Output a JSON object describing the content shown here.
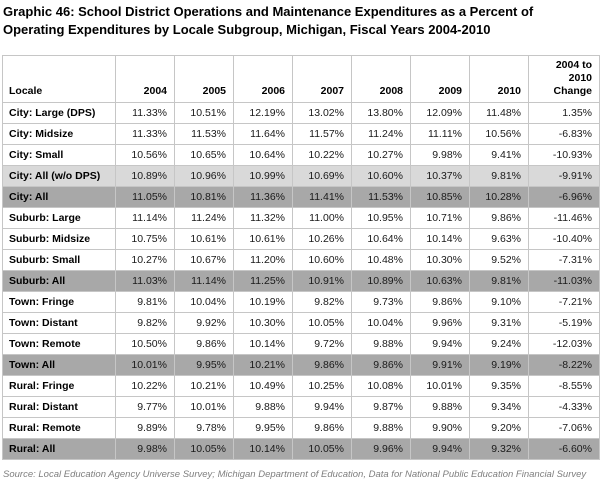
{
  "title": "Graphic 46: School District Operations and Maintenance Expenditures as a Percent of Operating Expenditures by Locale Subgroup, Michigan, Fiscal Years 2004-2010",
  "source_note": "Source: Local Education Agency Universe Survey; Michigan Department of Education, Data for National Public Education Financial Survey",
  "colors": {
    "row_highlight_light": "#d9d9d9",
    "row_highlight_dark": "#a8a8a8",
    "table_border": "#c6c6c6",
    "title_text": "#000000",
    "source_text": "#7f7f7f"
  },
  "chart_data": {
    "type": "table",
    "title": "Graphic 46: School District Operations and Maintenance Expenditures as a Percent of Operating Expenditures by Locale Subgroup, Michigan, Fiscal Years 2004-2010",
    "columns": [
      "Locale",
      "2004",
      "2005",
      "2006",
      "2007",
      "2008",
      "2009",
      "2010",
      "2004 to 2010 Change"
    ],
    "rows": [
      {
        "locale": "City: Large (DPS)",
        "values": [
          "11.33%",
          "10.51%",
          "12.19%",
          "13.02%",
          "13.80%",
          "12.09%",
          "11.48%",
          "1.35%"
        ],
        "emphasis": "none"
      },
      {
        "locale": "City: Midsize",
        "values": [
          "11.33%",
          "11.53%",
          "11.64%",
          "11.57%",
          "11.24%",
          "11.11%",
          "10.56%",
          "-6.83%"
        ],
        "emphasis": "none"
      },
      {
        "locale": "City: Small",
        "values": [
          "10.56%",
          "10.65%",
          "10.64%",
          "10.22%",
          "10.27%",
          "9.98%",
          "9.41%",
          "-10.93%"
        ],
        "emphasis": "none"
      },
      {
        "locale": "City: All (w/o DPS)",
        "values": [
          "10.89%",
          "10.96%",
          "10.99%",
          "10.69%",
          "10.60%",
          "10.37%",
          "9.81%",
          "-9.91%"
        ],
        "emphasis": "light"
      },
      {
        "locale": "City: All",
        "values": [
          "11.05%",
          "10.81%",
          "11.36%",
          "11.41%",
          "11.53%",
          "10.85%",
          "10.28%",
          "-6.96%"
        ],
        "emphasis": "dark"
      },
      {
        "locale": "Suburb: Large",
        "values": [
          "11.14%",
          "11.24%",
          "11.32%",
          "11.00%",
          "10.95%",
          "10.71%",
          "9.86%",
          "-11.46%"
        ],
        "emphasis": "none"
      },
      {
        "locale": "Suburb: Midsize",
        "values": [
          "10.75%",
          "10.61%",
          "10.61%",
          "10.26%",
          "10.64%",
          "10.14%",
          "9.63%",
          "-10.40%"
        ],
        "emphasis": "none"
      },
      {
        "locale": "Suburb: Small",
        "values": [
          "10.27%",
          "10.67%",
          "11.20%",
          "10.60%",
          "10.48%",
          "10.30%",
          "9.52%",
          "-7.31%"
        ],
        "emphasis": "none"
      },
      {
        "locale": "Suburb: All",
        "values": [
          "11.03%",
          "11.14%",
          "11.25%",
          "10.91%",
          "10.89%",
          "10.63%",
          "9.81%",
          "-11.03%"
        ],
        "emphasis": "dark"
      },
      {
        "locale": "Town: Fringe",
        "values": [
          "9.81%",
          "10.04%",
          "10.19%",
          "9.82%",
          "9.73%",
          "9.86%",
          "9.10%",
          "-7.21%"
        ],
        "emphasis": "none"
      },
      {
        "locale": "Town: Distant",
        "values": [
          "9.82%",
          "9.92%",
          "10.30%",
          "10.05%",
          "10.04%",
          "9.96%",
          "9.31%",
          "-5.19%"
        ],
        "emphasis": "none"
      },
      {
        "locale": "Town: Remote",
        "values": [
          "10.50%",
          "9.86%",
          "10.14%",
          "9.72%",
          "9.88%",
          "9.94%",
          "9.24%",
          "-12.03%"
        ],
        "emphasis": "none"
      },
      {
        "locale": "Town: All",
        "values": [
          "10.01%",
          "9.95%",
          "10.21%",
          "9.86%",
          "9.86%",
          "9.91%",
          "9.19%",
          "-8.22%"
        ],
        "emphasis": "dark"
      },
      {
        "locale": "Rural: Fringe",
        "values": [
          "10.22%",
          "10.21%",
          "10.49%",
          "10.25%",
          "10.08%",
          "10.01%",
          "9.35%",
          "-8.55%"
        ],
        "emphasis": "none"
      },
      {
        "locale": "Rural: Distant",
        "values": [
          "9.77%",
          "10.01%",
          "9.88%",
          "9.94%",
          "9.87%",
          "9.88%",
          "9.34%",
          "-4.33%"
        ],
        "emphasis": "none"
      },
      {
        "locale": "Rural: Remote",
        "values": [
          "9.89%",
          "9.78%",
          "9.95%",
          "9.86%",
          "9.88%",
          "9.90%",
          "9.20%",
          "-7.06%"
        ],
        "emphasis": "none"
      },
      {
        "locale": "Rural: All",
        "values": [
          "9.98%",
          "10.05%",
          "10.14%",
          "10.05%",
          "9.96%",
          "9.94%",
          "9.32%",
          "-6.60%"
        ],
        "emphasis": "dark"
      }
    ]
  }
}
